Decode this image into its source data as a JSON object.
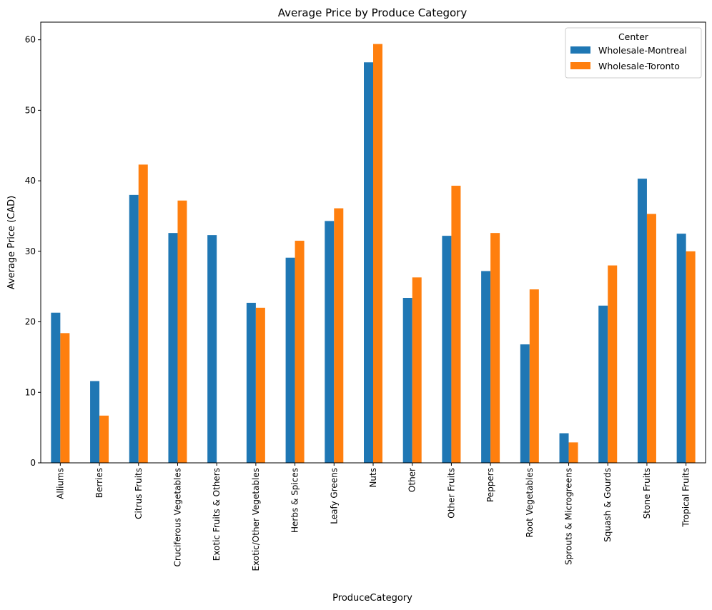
{
  "chart_data": {
    "type": "bar",
    "title": "Average Price by Produce Category",
    "xlabel": "ProduceCategory",
    "ylabel": "Average Price (CAD)",
    "ylim": [
      0,
      62.5
    ],
    "yticks": [
      0,
      10,
      20,
      30,
      40,
      50,
      60
    ],
    "grid": false,
    "legend": {
      "title": "Center",
      "position": "top-right"
    },
    "categories": [
      "Alliums",
      "Berries",
      "Citrus Fruits",
      "Cruciferous Vegetables",
      "Exotic Fruits & Others",
      "Exotic/Other Vegetables",
      "Herbs & Spices",
      "Leafy Greens",
      "Nuts",
      "Other",
      "Other Fruits",
      "Peppers",
      "Root Vegetables",
      "Sprouts & Microgreens",
      "Squash & Gourds",
      "Stone Fruits",
      "Tropical Fruits"
    ],
    "series": [
      {
        "name": "Wholesale-Montreal",
        "color": "#1f77b4",
        "values": [
          21.3,
          11.6,
          38.0,
          32.6,
          32.3,
          22.7,
          29.1,
          34.3,
          56.8,
          23.4,
          32.2,
          27.2,
          16.8,
          4.2,
          22.3,
          40.3,
          32.5
        ]
      },
      {
        "name": "Wholesale-Toronto",
        "color": "#ff7f0e",
        "values": [
          18.4,
          6.7,
          42.3,
          37.2,
          null,
          22.0,
          31.5,
          36.1,
          59.4,
          26.3,
          39.3,
          32.6,
          24.6,
          2.9,
          28.0,
          35.3,
          30.0
        ]
      }
    ]
  }
}
